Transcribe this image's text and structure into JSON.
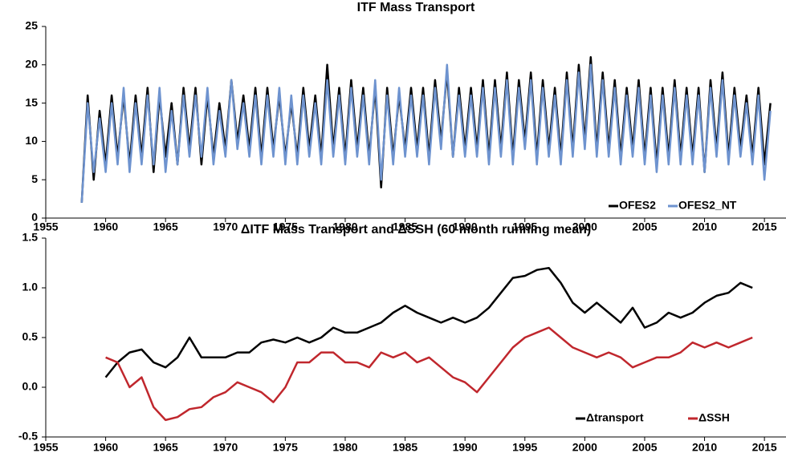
{
  "chart_data": [
    {
      "type": "line",
      "title": "ITF Mass Transport",
      "x": [
        1958,
        1958.5,
        1959,
        1959.5,
        1960,
        1960.5,
        1961,
        1961.5,
        1962,
        1962.5,
        1963,
        1963.5,
        1964,
        1964.5,
        1965,
        1965.5,
        1966,
        1966.5,
        1967,
        1967.5,
        1968,
        1968.5,
        1969,
        1969.5,
        1970,
        1970.5,
        1971,
        1971.5,
        1972,
        1972.5,
        1973,
        1973.5,
        1974,
        1974.5,
        1975,
        1975.5,
        1976,
        1976.5,
        1977,
        1977.5,
        1978,
        1978.5,
        1979,
        1979.5,
        1980,
        1980.5,
        1981,
        1981.5,
        1982,
        1982.5,
        1983,
        1983.5,
        1984,
        1984.5,
        1985,
        1985.5,
        1986,
        1986.5,
        1987,
        1987.5,
        1988,
        1988.5,
        1989,
        1989.5,
        1990,
        1990.5,
        1991,
        1991.5,
        1992,
        1992.5,
        1993,
        1993.5,
        1994,
        1994.5,
        1995,
        1995.5,
        1996,
        1996.5,
        1997,
        1997.5,
        1998,
        1998.5,
        1999,
        1999.5,
        2000,
        2000.5,
        2001,
        2001.5,
        2002,
        2002.5,
        2003,
        2003.5,
        2004,
        2004.5,
        2005,
        2005.5,
        2006,
        2006.5,
        2007,
        2007.5,
        2008,
        2008.5,
        2009,
        2009.5,
        2010,
        2010.5,
        2011,
        2011.5,
        2012,
        2012.5,
        2013,
        2013.5,
        2014,
        2014.5,
        2015,
        2015.5
      ],
      "series": [
        {
          "name": "OFES2",
          "color": "#000000",
          "values": [
            2,
            16,
            5,
            14,
            7,
            16,
            8,
            16,
            7,
            16,
            8,
            17,
            6,
            16,
            8,
            15,
            7,
            17,
            9,
            17,
            7,
            16,
            8,
            15,
            9,
            18,
            10,
            16,
            9,
            17,
            8,
            17,
            9,
            16,
            8,
            15,
            8,
            17,
            9,
            16,
            8,
            20,
            9,
            17,
            8,
            18,
            9,
            17,
            8,
            17,
            4,
            17,
            8,
            16,
            9,
            17,
            9,
            17,
            8,
            18,
            10,
            19,
            8,
            17,
            9,
            17,
            9,
            18,
            8,
            18,
            9,
            19,
            8,
            18,
            10,
            19,
            8,
            18,
            9,
            17,
            8,
            19,
            9,
            20,
            10,
            21,
            9,
            19,
            9,
            18,
            8,
            17,
            9,
            18,
            8,
            17,
            7,
            17,
            8,
            18,
            8,
            17,
            8,
            17,
            6,
            18,
            9,
            19,
            8,
            17,
            9,
            16,
            8,
            17,
            7,
            15
          ]
        },
        {
          "name": "OFES2_NT",
          "color": "#6e93cf",
          "values": [
            2,
            15,
            6,
            13,
            6,
            15,
            7,
            17,
            6,
            15,
            7,
            16,
            7,
            17,
            6,
            14,
            7,
            16,
            8,
            16,
            8,
            17,
            7,
            14,
            8,
            18,
            9,
            15,
            8,
            16,
            7,
            16,
            8,
            17,
            7,
            16,
            7,
            16,
            8,
            15,
            7,
            18,
            8,
            16,
            7,
            17,
            8,
            16,
            7,
            18,
            5,
            16,
            7,
            17,
            8,
            16,
            8,
            16,
            7,
            17,
            9,
            20,
            8,
            16,
            8,
            16,
            8,
            17,
            7,
            17,
            8,
            18,
            7,
            17,
            9,
            18,
            7,
            17,
            8,
            16,
            7,
            18,
            8,
            19,
            9,
            20,
            8,
            18,
            8,
            17,
            7,
            16,
            8,
            17,
            7,
            16,
            6,
            16,
            7,
            17,
            7,
            16,
            7,
            16,
            6,
            17,
            8,
            18,
            7,
            16,
            8,
            15,
            7,
            16,
            5,
            14
          ]
        }
      ],
      "xlim": [
        1955,
        2016.8
      ],
      "xticks": [
        1955,
        1960,
        1965,
        1970,
        1975,
        1980,
        1985,
        1990,
        1995,
        2000,
        2005,
        2010,
        2015
      ],
      "ylim": [
        0,
        25
      ],
      "yticks": [
        0,
        5,
        10,
        15,
        20,
        25
      ],
      "legend": "lower right"
    },
    {
      "type": "line",
      "title": "ΔITF Mass Transport and ΔSSH (60 month running mean)",
      "x": [
        1960,
        1961,
        1962,
        1963,
        1964,
        1965,
        1966,
        1967,
        1968,
        1969,
        1970,
        1971,
        1972,
        1973,
        1974,
        1975,
        1976,
        1977,
        1978,
        1979,
        1980,
        1981,
        1982,
        1983,
        1984,
        1985,
        1986,
        1987,
        1988,
        1989,
        1990,
        1991,
        1992,
        1993,
        1994,
        1995,
        1996,
        1997,
        1998,
        1999,
        2000,
        2001,
        2002,
        2003,
        2004,
        2005,
        2006,
        2007,
        2008,
        2009,
        2010,
        2011,
        2012,
        2013,
        2014
      ],
      "series": [
        {
          "name": "Δtransport",
          "color": "#000000",
          "values": [
            0.1,
            0.25,
            0.35,
            0.38,
            0.25,
            0.2,
            0.3,
            0.5,
            0.3,
            0.3,
            0.3,
            0.35,
            0.35,
            0.45,
            0.48,
            0.45,
            0.5,
            0.45,
            0.5,
            0.6,
            0.55,
            0.55,
            0.6,
            0.65,
            0.75,
            0.82,
            0.75,
            0.7,
            0.65,
            0.7,
            0.65,
            0.7,
            0.8,
            0.95,
            1.1,
            1.12,
            1.18,
            1.2,
            1.05,
            0.85,
            0.75,
            0.85,
            0.75,
            0.65,
            0.8,
            0.6,
            0.65,
            0.75,
            0.7,
            0.75,
            0.85,
            0.92,
            0.95,
            1.05,
            1.0
          ]
        },
        {
          "name": "ΔSSH",
          "color": "#c0272d",
          "values": [
            0.3,
            0.25,
            0.0,
            0.1,
            -0.2,
            -0.33,
            -0.3,
            -0.22,
            -0.2,
            -0.1,
            -0.05,
            0.05,
            0.0,
            -0.05,
            -0.15,
            0.0,
            0.25,
            0.25,
            0.35,
            0.35,
            0.25,
            0.25,
            0.2,
            0.35,
            0.3,
            0.35,
            0.25,
            0.3,
            0.2,
            0.1,
            0.05,
            -0.05,
            0.1,
            0.25,
            0.4,
            0.5,
            0.55,
            0.6,
            0.5,
            0.4,
            0.35,
            0.3,
            0.35,
            0.3,
            0.2,
            0.25,
            0.3,
            0.3,
            0.35,
            0.45,
            0.4,
            0.45,
            0.4,
            0.45,
            0.5
          ]
        }
      ],
      "xlim": [
        1955,
        2016.8
      ],
      "xticks": [
        1955,
        1960,
        1965,
        1970,
        1975,
        1980,
        1985,
        1990,
        1995,
        2000,
        2005,
        2010,
        2015
      ],
      "ylim": [
        -0.5,
        1.5
      ],
      "yticks": [
        -0.5,
        {
          "value": 0,
          "label": "0.0"
        },
        0.5,
        {
          "value": 1,
          "label": "1.0"
        },
        1.5
      ],
      "legend": "lower right"
    }
  ]
}
